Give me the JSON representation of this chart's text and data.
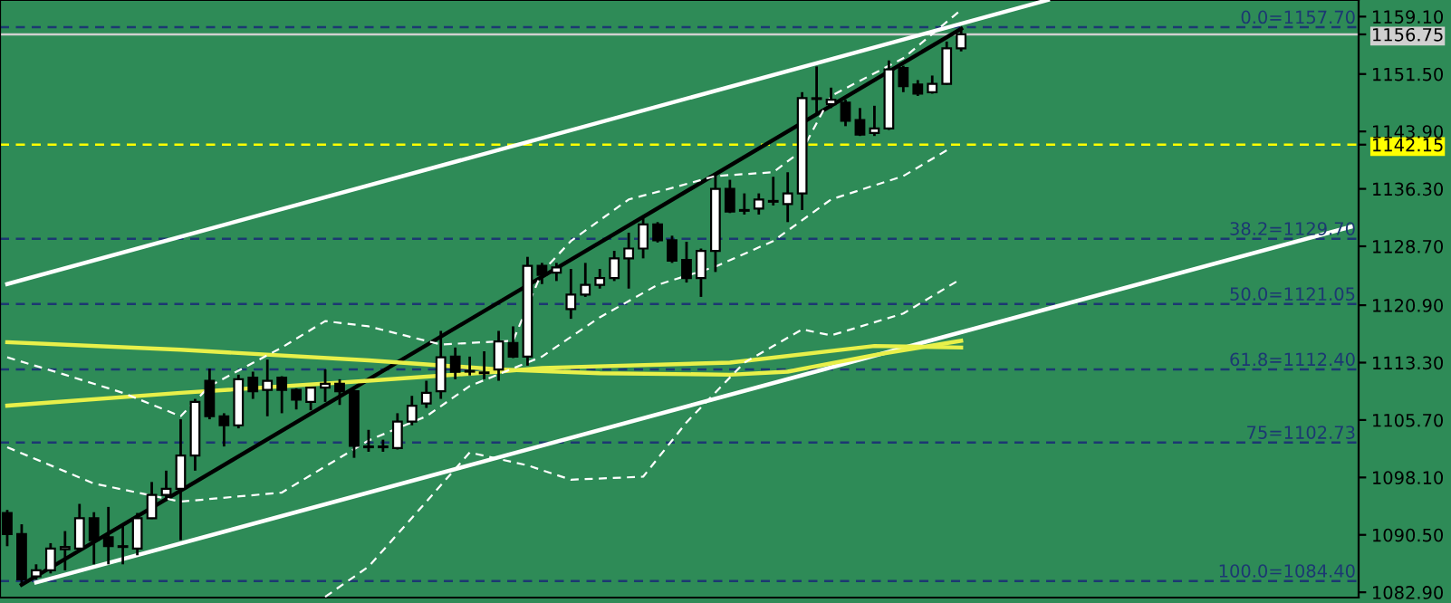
{
  "chart_data": {
    "type": "candlestick",
    "categories": [
      null,
      null,
      null,
      null,
      null,
      null,
      null,
      null,
      null,
      null,
      null,
      null,
      null,
      null,
      null,
      null,
      null,
      null,
      null,
      null,
      null,
      null,
      null,
      null,
      null,
      null,
      null,
      null,
      null,
      null,
      null,
      null,
      null,
      null,
      null,
      null,
      null,
      null,
      null,
      null,
      null,
      null,
      null,
      null,
      null,
      null,
      null,
      null,
      null,
      null,
      null,
      null,
      null,
      null,
      null,
      null,
      null,
      null,
      null,
      null,
      null,
      null,
      null,
      null,
      null,
      null,
      null,
      null,
      null,
      null,
      null,
      null,
      null,
      null,
      null,
      null,
      null,
      null,
      null,
      null,
      null,
      null,
      null,
      null,
      null,
      null,
      null,
      null,
      null,
      null,
      null,
      null,
      null,
      null
    ],
    "ohlc": [
      [
        1093.4,
        1093.8,
        1089.0,
        1090.6
      ],
      [
        1090.6,
        1091.9,
        1083.9,
        1084.6
      ],
      [
        1085.0,
        1086.6,
        1084.6,
        1085.8
      ],
      [
        1085.8,
        1089.4,
        1085.4,
        1088.7
      ],
      [
        1088.6,
        1091.0,
        1085.8,
        1088.9
      ],
      [
        1088.7,
        1094.6,
        1088.6,
        1092.7
      ],
      [
        1092.7,
        1093.5,
        1086.6,
        1089.8
      ],
      [
        1090.2,
        1094.2,
        1086.6,
        1089.0
      ],
      [
        1088.9,
        1091.9,
        1086.6,
        1089.0
      ],
      [
        1088.7,
        1093.4,
        1087.8,
        1092.7
      ],
      [
        1092.7,
        1097.5,
        1092.6,
        1095.8
      ],
      [
        1095.8,
        1099.0,
        1095.0,
        1096.6
      ],
      [
        1096.6,
        1105.8,
        1089.8,
        1101.0
      ],
      [
        1101.0,
        1108.5,
        1099.0,
        1108.1
      ],
      [
        1110.9,
        1112.5,
        1105.8,
        1106.2
      ],
      [
        1106.2,
        1106.6,
        1102.2,
        1105.0
      ],
      [
        1105.0,
        1111.7,
        1104.6,
        1111.1
      ],
      [
        1111.3,
        1112.1,
        1108.5,
        1109.5
      ],
      [
        1109.7,
        1113.7,
        1106.2,
        1110.9
      ],
      [
        1111.3,
        1111.5,
        1106.6,
        1109.7
      ],
      [
        1109.7,
        1109.9,
        1107.1,
        1108.4
      ],
      [
        1108.1,
        1110.1,
        1107.0,
        1110.0
      ],
      [
        1110.0,
        1112.4,
        1108.1,
        1110.5
      ],
      [
        1110.5,
        1111.1,
        1107.7,
        1109.5
      ],
      [
        1109.5,
        1109.7,
        1100.7,
        1102.3
      ],
      [
        1102.2,
        1104.4,
        1101.5,
        1102.1
      ],
      [
        1102.1,
        1103.1,
        1101.5,
        1102.2
      ],
      [
        1102.0,
        1106.6,
        1101.8,
        1105.5
      ],
      [
        1105.5,
        1108.9,
        1105.0,
        1107.6
      ],
      [
        1107.9,
        1110.9,
        1107.3,
        1109.3
      ],
      [
        1109.5,
        1117.5,
        1108.5,
        1114.0
      ],
      [
        1114.1,
        1115.3,
        1111.1,
        1112.1
      ],
      [
        1112.2,
        1114.1,
        1111.6,
        1112.1
      ],
      [
        1111.9,
        1114.8,
        1111.1,
        1112.0
      ],
      [
        1112.4,
        1117.5,
        1110.9,
        1116.1
      ],
      [
        1115.9,
        1118.1,
        1113.9,
        1114.1
      ],
      [
        1114.1,
        1127.3,
        1112.9,
        1126.1
      ],
      [
        1126.1,
        1126.5,
        1123.7,
        1124.9
      ],
      [
        1125.2,
        1126.5,
        1124.1,
        1125.9
      ],
      [
        1120.4,
        1125.7,
        1119.1,
        1122.3
      ],
      [
        1122.3,
        1126.5,
        1122.0,
        1123.6
      ],
      [
        1123.6,
        1125.7,
        1123.1,
        1124.5
      ],
      [
        1124.5,
        1128.1,
        1124.1,
        1127.1
      ],
      [
        1127.1,
        1130.5,
        1123.1,
        1128.4
      ],
      [
        1128.4,
        1132.7,
        1127.1,
        1131.6
      ],
      [
        1131.6,
        1131.9,
        1129.2,
        1129.5
      ],
      [
        1129.5,
        1130.1,
        1126.5,
        1126.8
      ],
      [
        1126.9,
        1129.3,
        1123.9,
        1124.5
      ],
      [
        1124.5,
        1128.4,
        1122.0,
        1128.1
      ],
      [
        1128.1,
        1138.1,
        1125.3,
        1136.3
      ],
      [
        1136.3,
        1137.5,
        1133.1,
        1133.3
      ],
      [
        1133.4,
        1135.7,
        1132.9,
        1133.5
      ],
      [
        1133.7,
        1135.7,
        1132.9,
        1134.9
      ],
      [
        1134.6,
        1137.9,
        1134.1,
        1134.7
      ],
      [
        1134.3,
        1138.5,
        1131.9,
        1135.7
      ],
      [
        1135.7,
        1149.1,
        1133.5,
        1148.3
      ],
      [
        1148.2,
        1152.5,
        1146.1,
        1148.3
      ],
      [
        1147.5,
        1149.7,
        1147.0,
        1148.1
      ],
      [
        1147.7,
        1148.1,
        1144.6,
        1145.3
      ],
      [
        1145.4,
        1147.0,
        1143.3,
        1143.5
      ],
      [
        1143.7,
        1147.3,
        1143.3,
        1144.3
      ],
      [
        1144.3,
        1153.3,
        1144.1,
        1152.1
      ],
      [
        1152.3,
        1152.6,
        1149.1,
        1149.9
      ],
      [
        1150.1,
        1150.7,
        1148.6,
        1148.9
      ],
      [
        1149.1,
        1151.3,
        1148.9,
        1150.2
      ],
      [
        1150.2,
        1155.8,
        1150.1,
        1154.9
      ],
      [
        1154.9,
        1157.7,
        1154.5,
        1156.75
      ],
      null,
      null,
      null,
      null,
      null,
      null,
      null,
      null,
      null,
      null,
      null,
      null,
      null,
      null,
      null,
      null,
      null,
      null,
      null,
      null,
      null,
      null,
      null,
      null,
      null,
      null,
      null
    ],
    "series": [
      {
        "type": "line",
        "color": "#ffffff",
        "line_style": "solid",
        "values": [
          1123.7,
          null,
          null,
          null,
          null,
          null,
          null,
          null,
          null,
          null,
          null,
          null,
          null,
          null,
          null,
          null,
          null,
          null,
          null,
          null,
          null,
          null,
          null,
          null,
          null,
          null,
          null,
          null,
          null,
          null,
          null,
          null,
          null,
          null,
          null,
          null,
          null,
          null,
          null,
          null,
          null,
          null,
          null,
          null,
          null,
          null,
          null,
          null,
          null,
          null,
          null,
          null,
          null,
          null,
          null,
          null,
          null,
          null,
          null,
          null,
          null,
          null,
          null,
          null,
          null,
          null,
          null,
          null,
          null,
          null,
          null,
          null,
          1161.3,
          null,
          null,
          null,
          null,
          null,
          null,
          null,
          null,
          null,
          null,
          null,
          null,
          null,
          null,
          null,
          null,
          null,
          null,
          null,
          null,
          null
        ]
      },
      {
        "type": "line",
        "color": "#ffffff",
        "line_style": "solid",
        "values": [
          null,
          null,
          1084.2,
          null,
          null,
          null,
          null,
          null,
          null,
          null,
          null,
          null,
          null,
          null,
          null,
          null,
          null,
          null,
          null,
          null,
          null,
          null,
          null,
          null,
          null,
          null,
          null,
          null,
          null,
          null,
          null,
          null,
          null,
          null,
          null,
          null,
          null,
          null,
          null,
          null,
          null,
          null,
          null,
          null,
          null,
          null,
          null,
          null,
          null,
          null,
          null,
          null,
          null,
          null,
          null,
          null,
          null,
          null,
          null,
          null,
          null,
          null,
          null,
          null,
          null,
          null,
          null,
          null,
          null,
          null,
          null,
          null,
          null,
          null,
          null,
          null,
          null,
          null,
          null,
          null,
          null,
          null,
          null,
          null,
          null,
          null,
          null,
          null,
          null,
          null,
          null,
          null,
          null,
          1131.3
        ]
      },
      {
        "type": "line",
        "color": "#000000",
        "line_style": "solid",
        "values": [
          null,
          1083.9,
          null,
          null,
          null,
          null,
          null,
          null,
          null,
          null,
          null,
          null,
          null,
          null,
          null,
          null,
          null,
          null,
          null,
          null,
          null,
          null,
          null,
          null,
          null,
          null,
          null,
          null,
          null,
          null,
          null,
          null,
          null,
          null,
          null,
          null,
          null,
          null,
          null,
          null,
          null,
          null,
          null,
          null,
          null,
          null,
          null,
          null,
          null,
          null,
          null,
          null,
          null,
          null,
          null,
          null,
          null,
          null,
          null,
          null,
          null,
          null,
          null,
          null,
          null,
          null,
          1157.5,
          null,
          null,
          null,
          null,
          null,
          null,
          null,
          null,
          null,
          null,
          null,
          null,
          null,
          null,
          null,
          null,
          null,
          null,
          null,
          null,
          null,
          null,
          null,
          null,
          null,
          null,
          null
        ]
      },
      {
        "type": "line",
        "color": "#e8f04a",
        "line_style": "solid",
        "values": [
          1116.0,
          null,
          null,
          null,
          null,
          null,
          null,
          null,
          null,
          null,
          null,
          null,
          1115.0,
          null,
          null,
          null,
          null,
          null,
          null,
          null,
          null,
          null,
          null,
          null,
          null,
          1113.6,
          null,
          null,
          null,
          null,
          null,
          null,
          null,
          null,
          1112.4,
          null,
          null,
          null,
          null,
          null,
          null,
          1111.9,
          null,
          null,
          null,
          null,
          null,
          null,
          null,
          null,
          1111.7,
          null,
          null,
          null,
          1112.1,
          null,
          null,
          null,
          null,
          null,
          1114.3,
          null,
          null,
          null,
          null,
          null,
          1116.2,
          null,
          null,
          null,
          null,
          null,
          null,
          null,
          null,
          null,
          null,
          null,
          null,
          null,
          null,
          null,
          null,
          null,
          null,
          null,
          null,
          null,
          null,
          null,
          null,
          null,
          null,
          null
        ]
      },
      {
        "type": "line",
        "color": "#e8f04a",
        "line_style": "solid",
        "values": [
          1107.6,
          null,
          null,
          null,
          null,
          null,
          null,
          null,
          null,
          null,
          null,
          null,
          1109.3,
          null,
          null,
          null,
          null,
          null,
          null,
          null,
          null,
          null,
          null,
          null,
          null,
          1110.9,
          null,
          null,
          null,
          null,
          null,
          null,
          null,
          null,
          1112.1,
          null,
          null,
          1112.6,
          null,
          null,
          null,
          null,
          null,
          null,
          null,
          null,
          null,
          null,
          null,
          null,
          1113.3,
          null,
          null,
          null,
          null,
          null,
          null,
          null,
          null,
          null,
          1115.5,
          null,
          null,
          null,
          null,
          null,
          1115.3,
          null,
          null,
          null,
          null,
          null,
          null,
          null,
          null,
          null,
          null,
          null,
          null,
          null,
          null,
          null,
          null,
          null,
          null,
          null,
          null,
          null,
          null,
          null,
          null,
          null,
          null,
          null
        ]
      },
      {
        "type": "line",
        "color": "#ffffff",
        "line_style": "dashed",
        "values": [
          1114.0,
          null,
          null,
          null,
          1111.7,
          null,
          null,
          null,
          1109.3,
          null,
          null,
          null,
          1106.2,
          null,
          1110.2,
          null,
          null,
          null,
          null,
          1115.3,
          null,
          null,
          1118.8,
          null,
          null,
          1118.1,
          null,
          null,
          null,
          null,
          1115.7,
          null,
          null,
          null,
          null,
          1116.2,
          null,
          1125.3,
          null,
          1129.4,
          null,
          null,
          null,
          1134.9,
          null,
          1135.9,
          null,
          null,
          null,
          1138.0,
          null,
          null,
          null,
          1138.5,
          null,
          1141.4,
          null,
          1148.6,
          null,
          null,
          null,
          null,
          1153.6,
          null,
          null,
          null,
          1160.0,
          null,
          null,
          null,
          null,
          null,
          null,
          null,
          null,
          null,
          null,
          null,
          null,
          null,
          null,
          null,
          null,
          null,
          null,
          null,
          null,
          null,
          null,
          null,
          null,
          null,
          null,
          null
        ]
      },
      {
        "type": "line",
        "color": "#ffffff",
        "line_style": "dashed",
        "values": [
          1102.1,
          null,
          null,
          null,
          null,
          null,
          1097.3,
          null,
          null,
          null,
          null,
          null,
          1094.9,
          null,
          null,
          null,
          null,
          null,
          null,
          1096.1,
          null,
          null,
          null,
          null,
          null,
          1103.0,
          null,
          null,
          null,
          1106.2,
          null,
          null,
          1110.2,
          null,
          null,
          null,
          null,
          1114.1,
          null,
          null,
          null,
          1119.3,
          null,
          null,
          null,
          1123.6,
          null,
          null,
          null,
          1126.0,
          null,
          null,
          null,
          1129.4,
          null,
          null,
          null,
          1134.9,
          null,
          null,
          null,
          null,
          1138.0,
          null,
          null,
          1141.4,
          null,
          null,
          null,
          null,
          null,
          null,
          null,
          null,
          null,
          null,
          null,
          null,
          null,
          null,
          null,
          null,
          null,
          null,
          null,
          null,
          null,
          null,
          null,
          null,
          null,
          null,
          null,
          null
        ]
      },
      {
        "type": "line",
        "color": "#ffffff",
        "line_style": "dashed",
        "values": [
          null,
          null,
          null,
          null,
          null,
          null,
          null,
          null,
          null,
          null,
          null,
          null,
          null,
          null,
          null,
          null,
          null,
          null,
          null,
          null,
          null,
          null,
          1082.3,
          null,
          null,
          1086.3,
          null,
          null,
          null,
          1094.9,
          null,
          null,
          1101.4,
          null,
          null,
          null,
          1099.7,
          null,
          null,
          1097.8,
          null,
          null,
          null,
          null,
          1098.2,
          null,
          null,
          1105.4,
          null,
          null,
          null,
          1113.3,
          null,
          null,
          null,
          1117.7,
          null,
          1116.9,
          null,
          null,
          null,
          null,
          1119.8,
          null,
          null,
          null,
          1124.4,
          null,
          null,
          null,
          null,
          null,
          null,
          null,
          null,
          null,
          null,
          null,
          null,
          null,
          null,
          null,
          null,
          null,
          null,
          null,
          null,
          null,
          null,
          null,
          null,
          null,
          null,
          null
        ]
      }
    ],
    "ref_lines": [
      {
        "axis": "y",
        "value": 1157.7,
        "label": "0.0=1157.70",
        "color": "#1c3872",
        "line_style": "dashed"
      },
      {
        "axis": "y",
        "value": 1129.7,
        "label": "38.2=1129.70",
        "color": "#1c3872",
        "line_style": "dashed"
      },
      {
        "axis": "y",
        "value": 1121.05,
        "label": "50.0=1121.05",
        "color": "#1c3872",
        "line_style": "dashed"
      },
      {
        "axis": "y",
        "value": 1112.4,
        "label": "61.8=1112.40",
        "color": "#1c3872",
        "line_style": "dashed"
      },
      {
        "axis": "y",
        "value": 1102.73,
        "label": "75=1102.73",
        "color": "#1c3872",
        "line_style": "dashed"
      },
      {
        "axis": "y",
        "value": 1084.4,
        "label": "100.0=1084.40",
        "color": "#1c3872",
        "line_style": "dashed"
      },
      {
        "axis": "y",
        "value": 1142.15,
        "color": "#ffff00",
        "line_style": "dashed"
      },
      {
        "axis": "y",
        "value": 1156.75,
        "color": "#d0d0d0",
        "line_style": "solid"
      }
    ],
    "ylim": [
      1082.2,
      1161.3
    ],
    "yticks": [
      {
        "value": 1082.9,
        "label": "1082.90"
      },
      {
        "value": 1090.5,
        "label": "1090.50"
      },
      {
        "value": 1098.1,
        "label": "1098.10"
      },
      {
        "value": 1105.7,
        "label": "1105.70"
      },
      {
        "value": 1113.3,
        "label": "1113.30"
      },
      {
        "value": 1120.9,
        "label": "1120.90"
      },
      {
        "value": 1128.7,
        "label": "1128.70"
      },
      {
        "value": 1136.3,
        "label": "1136.30"
      },
      {
        "value": 1142.15,
        "label": "1142.15"
      },
      {
        "value": 1143.9,
        "label": "1143.90"
      },
      {
        "value": 1151.5,
        "label": "1151.50"
      },
      {
        "value": 1156.75,
        "label": "1156.75"
      },
      {
        "value": 1159.1,
        "label": "1159.10"
      }
    ],
    "tick_labels": "y"
  }
}
